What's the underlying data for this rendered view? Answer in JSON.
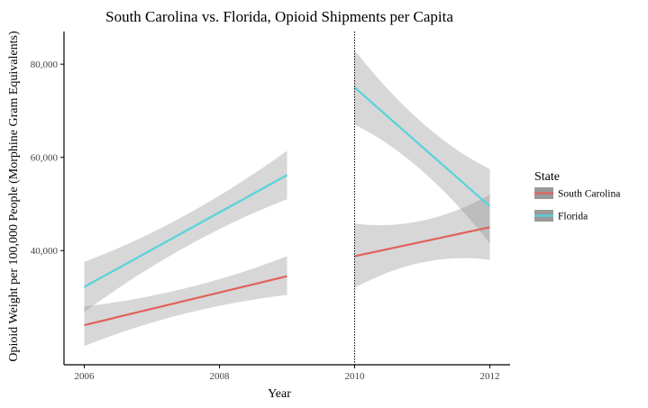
{
  "chart_data": {
    "type": "line",
    "title": "South Carolina vs. Florida, Opioid Shipments per Capita",
    "xlabel": "Year",
    "ylabel": "Opioid Weight per 100,000 People (Morphine Gram Equivalents)",
    "xlim": [
      2005.7,
      2012.3
    ],
    "ylim": [
      15500,
      87000
    ],
    "x_ticks": [
      2006,
      2008,
      2010,
      2012
    ],
    "x_tick_labels": [
      "2006",
      "2008",
      "2010",
      "2012"
    ],
    "y_ticks": [
      40000,
      60000,
      80000
    ],
    "y_tick_labels": [
      "40,000",
      "60,000",
      "80,000"
    ],
    "grid": false,
    "reference_line": {
      "x": 2010,
      "style": "dotted"
    },
    "legend": {
      "title": "State",
      "position": "right"
    },
    "series": [
      {
        "name": "South Carolina",
        "color": "#e0625a",
        "segments": [
          {
            "x": [
              2006,
              2009
            ],
            "y": [
              24000,
              34500
            ],
            "ci_low": [
              19500,
              30500
            ],
            "ci_high": [
              28000,
              38800
            ]
          },
          {
            "x": [
              2010,
              2012
            ],
            "y": [
              38800,
              45000
            ],
            "ci_low": [
              32000,
              38000
            ],
            "ci_high": [
              45800,
              52000
            ]
          }
        ]
      },
      {
        "name": "Florida",
        "color": "#55d3dc",
        "segments": [
          {
            "x": [
              2006,
              2009
            ],
            "y": [
              32200,
              56200
            ],
            "ci_low": [
              26800,
              51000
            ],
            "ci_high": [
              37600,
              61400
            ]
          },
          {
            "x": [
              2010,
              2012
            ],
            "y": [
              75000,
              49500
            ],
            "ci_low": [
              67000,
              41500
            ],
            "ci_high": [
              83000,
              57500
            ]
          }
        ]
      }
    ]
  }
}
